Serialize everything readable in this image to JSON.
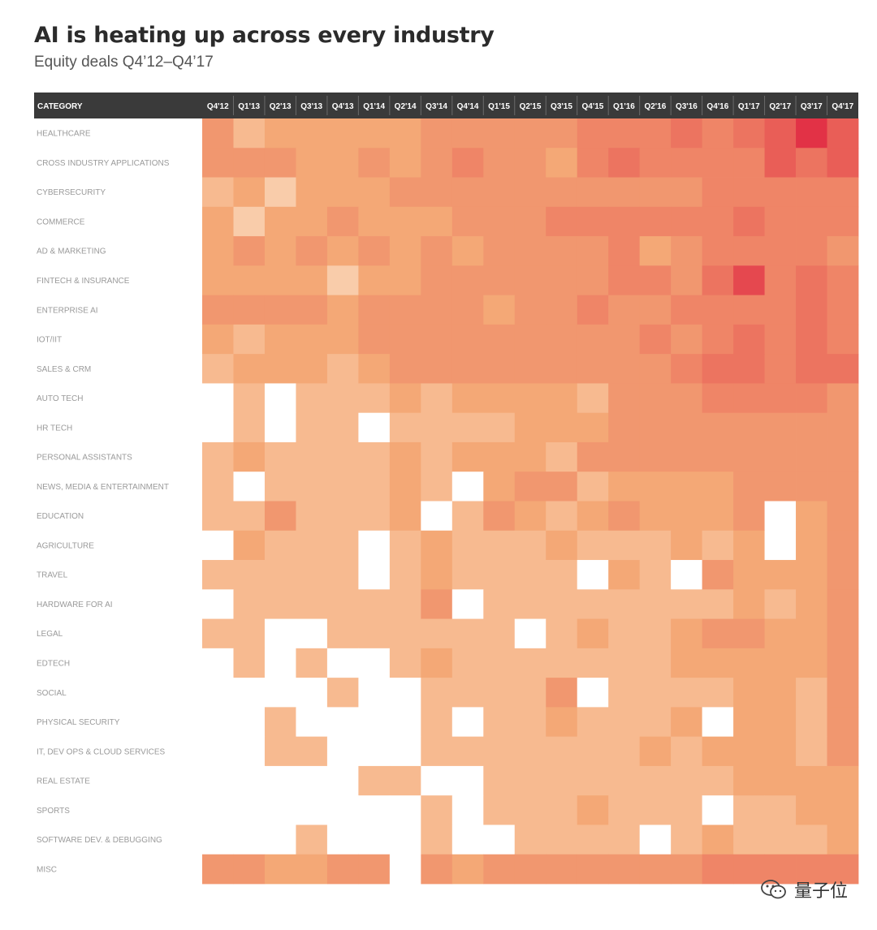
{
  "title": "AI is heating up across every industry",
  "subtitle": "Equity deals Q4’12–Q4’17",
  "watermark": "量子位",
  "chart_data": {
    "type": "heatmap",
    "row_header": "CATEGORY",
    "columns": [
      "Q4'12",
      "Q1'13",
      "Q2'13",
      "Q3'13",
      "Q4'13",
      "Q1'14",
      "Q2'14",
      "Q3'14",
      "Q4'14",
      "Q1'15",
      "Q2'15",
      "Q3'15",
      "Q4'15",
      "Q1'16",
      "Q2'16",
      "Q3'16",
      "Q4'16",
      "Q1'17",
      "Q2'17",
      "Q3'17",
      "Q4'17"
    ],
    "rows": [
      "HEALTHCARE",
      "CROSS INDUSTRY APPLICATIONS",
      "CYBERSECURITY",
      "COMMERCE",
      "AD & MARKETING",
      "FINTECH & INSURANCE",
      "ENTERPRISE AI",
      "IOT/IIT",
      "SALES & CRM",
      "AUTO TECH",
      "HR TECH",
      "PERSONAL ASSISTANTS",
      "NEWS, MEDIA & ENTERTAINMENT",
      "EDUCATION",
      "AGRICULTURE",
      "TRAVEL",
      "HARDWARE FOR AI",
      "LEGAL",
      "EDTECH",
      "SOCIAL",
      "PHYSICAL SECURITY",
      "IT, DEV OPS & CLOUD SERVICES",
      "REAL ESTATE",
      "SPORTS",
      "SOFTWARE DEV. & DEBUGGING",
      "MISC"
    ],
    "intensity_scale": [
      0,
      10
    ],
    "values": [
      [
        5,
        3,
        4,
        4,
        4,
        4,
        4,
        5,
        5,
        5,
        5,
        5,
        6,
        6,
        6,
        7,
        6,
        7,
        8,
        10,
        8
      ],
      [
        5,
        5,
        5,
        4,
        4,
        5,
        4,
        5,
        6,
        5,
        5,
        4,
        6,
        7,
        6,
        6,
        6,
        6,
        8,
        7,
        8
      ],
      [
        3,
        4,
        2,
        4,
        4,
        4,
        5,
        5,
        5,
        5,
        5,
        5,
        5,
        5,
        5,
        5,
        6,
        6,
        6,
        6,
        6
      ],
      [
        4,
        2,
        4,
        4,
        5,
        4,
        4,
        4,
        5,
        5,
        5,
        6,
        6,
        6,
        6,
        6,
        6,
        7,
        6,
        6,
        6
      ],
      [
        4,
        5,
        4,
        5,
        4,
        5,
        4,
        5,
        4,
        5,
        5,
        5,
        5,
        6,
        4,
        5,
        6,
        6,
        6,
        6,
        5
      ],
      [
        4,
        4,
        4,
        4,
        2,
        4,
        4,
        5,
        5,
        5,
        5,
        5,
        5,
        6,
        6,
        5,
        7,
        9,
        6,
        7,
        6
      ],
      [
        5,
        5,
        5,
        5,
        4,
        5,
        5,
        5,
        5,
        4,
        5,
        5,
        6,
        5,
        5,
        6,
        6,
        6,
        6,
        7,
        6
      ],
      [
        4,
        3,
        4,
        4,
        4,
        5,
        5,
        5,
        5,
        5,
        5,
        5,
        5,
        5,
        6,
        5,
        6,
        7,
        6,
        7,
        6
      ],
      [
        3,
        4,
        4,
        4,
        3,
        4,
        5,
        5,
        5,
        5,
        5,
        5,
        5,
        5,
        5,
        6,
        7,
        7,
        6,
        7,
        7
      ],
      [
        0,
        3,
        0,
        3,
        3,
        3,
        4,
        3,
        4,
        4,
        4,
        4,
        3,
        5,
        5,
        5,
        6,
        6,
        6,
        6,
        5
      ],
      [
        0,
        3,
        0,
        3,
        3,
        0,
        3,
        3,
        3,
        3,
        4,
        4,
        4,
        5,
        5,
        5,
        5,
        5,
        5,
        5,
        5
      ],
      [
        3,
        4,
        3,
        3,
        3,
        3,
        4,
        3,
        4,
        4,
        4,
        3,
        5,
        5,
        5,
        5,
        5,
        5,
        5,
        5,
        5
      ],
      [
        3,
        0,
        3,
        3,
        3,
        3,
        4,
        3,
        0,
        4,
        5,
        5,
        3,
        4,
        4,
        4,
        4,
        5,
        5,
        5,
        5
      ],
      [
        3,
        3,
        5,
        3,
        3,
        3,
        4,
        0,
        3,
        5,
        4,
        3,
        4,
        5,
        4,
        4,
        4,
        5,
        0,
        4,
        5
      ],
      [
        0,
        4,
        3,
        3,
        3,
        0,
        3,
        4,
        3,
        3,
        3,
        4,
        3,
        3,
        3,
        4,
        3,
        4,
        0,
        4,
        5
      ],
      [
        3,
        3,
        3,
        3,
        3,
        0,
        3,
        4,
        3,
        3,
        3,
        3,
        0,
        4,
        3,
        0,
        5,
        4,
        4,
        4,
        5
      ],
      [
        0,
        3,
        3,
        3,
        3,
        3,
        3,
        5,
        0,
        3,
        3,
        3,
        3,
        3,
        3,
        3,
        3,
        4,
        3,
        4,
        5
      ],
      [
        3,
        3,
        0,
        0,
        3,
        3,
        3,
        3,
        3,
        3,
        0,
        3,
        4,
        3,
        3,
        4,
        5,
        5,
        4,
        4,
        5
      ],
      [
        0,
        3,
        0,
        3,
        0,
        0,
        3,
        4,
        3,
        3,
        3,
        3,
        3,
        3,
        3,
        4,
        4,
        4,
        4,
        4,
        5
      ],
      [
        0,
        0,
        0,
        0,
        3,
        0,
        0,
        3,
        3,
        3,
        3,
        5,
        0,
        3,
        3,
        3,
        3,
        4,
        4,
        3,
        5
      ],
      [
        0,
        0,
        3,
        0,
        0,
        0,
        0,
        3,
        0,
        3,
        3,
        4,
        3,
        3,
        3,
        4,
        0,
        4,
        4,
        3,
        5
      ],
      [
        0,
        0,
        3,
        3,
        0,
        0,
        0,
        3,
        3,
        3,
        3,
        3,
        3,
        3,
        4,
        3,
        4,
        4,
        4,
        3,
        5
      ],
      [
        0,
        0,
        0,
        0,
        0,
        3,
        3,
        0,
        0,
        3,
        3,
        3,
        3,
        3,
        3,
        3,
        3,
        4,
        4,
        4,
        4
      ],
      [
        0,
        0,
        0,
        0,
        0,
        0,
        0,
        3,
        0,
        3,
        3,
        3,
        4,
        3,
        3,
        3,
        0,
        3,
        3,
        4,
        4
      ],
      [
        0,
        0,
        0,
        3,
        0,
        0,
        0,
        3,
        0,
        0,
        3,
        3,
        3,
        3,
        0,
        3,
        4,
        3,
        3,
        3,
        4
      ],
      [
        5,
        5,
        4,
        4,
        5,
        5,
        0,
        5,
        4,
        5,
        5,
        5,
        5,
        5,
        5,
        5,
        6,
        6,
        6,
        6,
        6
      ]
    ]
  }
}
